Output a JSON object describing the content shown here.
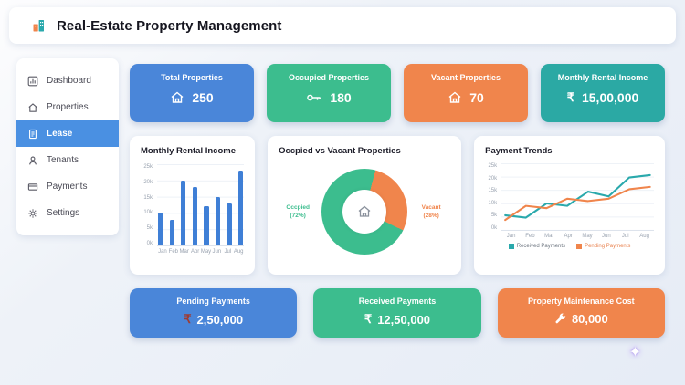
{
  "header": {
    "title": "Real-Estate Property Management"
  },
  "sidebar": {
    "items": [
      {
        "label": "Dashboard",
        "icon": "dashboard-icon",
        "active": false
      },
      {
        "label": "Properties",
        "icon": "home-icon",
        "active": false
      },
      {
        "label": "Lease",
        "icon": "lease-icon",
        "active": true
      },
      {
        "label": "Tenants",
        "icon": "tenants-icon",
        "active": false
      },
      {
        "label": "Payments",
        "icon": "payments-icon",
        "active": false
      },
      {
        "label": "Settings",
        "icon": "settings-icon",
        "active": false
      }
    ]
  },
  "stat_cards": [
    {
      "label": "Total Properties",
      "value": "250",
      "icon": "house-icon",
      "color": "#4a86d9"
    },
    {
      "label": "Occupied Properties",
      "value": "180",
      "icon": "key-icon",
      "color": "#3cbd8e"
    },
    {
      "label": "Vacant Properties",
      "value": "70",
      "icon": "house-icon",
      "color": "#f0854c"
    },
    {
      "label": "Monthly Rental Income",
      "value": "15,00,000",
      "currency": "₹",
      "icon": "rupee-icon",
      "color": "#2ba9a4"
    }
  ],
  "bottom_cards": [
    {
      "label": "Pending Payments",
      "value": "2,50,000",
      "currency": "₹",
      "currency_color": "#9e3b32",
      "color": "#4a86d9"
    },
    {
      "label": "Received Payments",
      "value": "12,50,000",
      "currency": "₹",
      "currency_color": "#ffffff",
      "color": "#3cbd8e"
    },
    {
      "label": "Property Maintenance Cost",
      "value": "80,000",
      "icon": "wrench-icon",
      "color": "#f0854c"
    }
  ],
  "chart_data": [
    {
      "type": "bar",
      "title": "Monthly Rental Income",
      "categories": [
        "Jan",
        "Feb",
        "Mar",
        "Apr",
        "May",
        "Jun",
        "Jul",
        "Aug"
      ],
      "values": [
        10,
        8,
        20,
        18,
        12,
        15,
        13,
        23
      ],
      "unit": "k",
      "ylim": [
        0,
        25
      ],
      "ytick_labels": [
        "25k",
        "20k",
        "15k",
        "10k",
        "5k",
        "0k"
      ],
      "bar_color": "#3f7fd6",
      "grid": true,
      "legend_position": "none"
    },
    {
      "type": "pie",
      "title": "Occpied vs Vacant Properties",
      "donut": true,
      "center_icon": "house-icon",
      "slices": [
        {
          "label": "Occpied",
          "pct": 72,
          "pct_label": "(72%)",
          "color": "#3cbd8e"
        },
        {
          "label": "Vacant",
          "pct": 28,
          "pct_label": "(28%)",
          "color": "#f0854c"
        }
      ]
    },
    {
      "type": "line",
      "title": "Payment Trends",
      "categories": [
        "Jan",
        "Feb",
        "Mar",
        "Apr",
        "May",
        "Jun",
        "Jul",
        "Aug"
      ],
      "ylim": [
        0,
        25
      ],
      "ytick_labels": [
        "25k",
        "20k",
        "15k",
        "10k",
        "5k",
        "0k"
      ],
      "series": [
        {
          "name": "Received Payments",
          "color": "#2aa9ac",
          "legend_text_color": "#6e7680",
          "values": [
            5,
            4,
            10,
            9,
            15,
            13,
            21,
            22
          ]
        },
        {
          "name": "Pending Payments",
          "color": "#f0854c",
          "legend_text_color": "#e9824e",
          "values": [
            3,
            9,
            8,
            12,
            11,
            12,
            16,
            17
          ]
        }
      ],
      "legend_position": "bottom",
      "grid": true
    }
  ],
  "misc": {
    "sparkle": "✦"
  }
}
